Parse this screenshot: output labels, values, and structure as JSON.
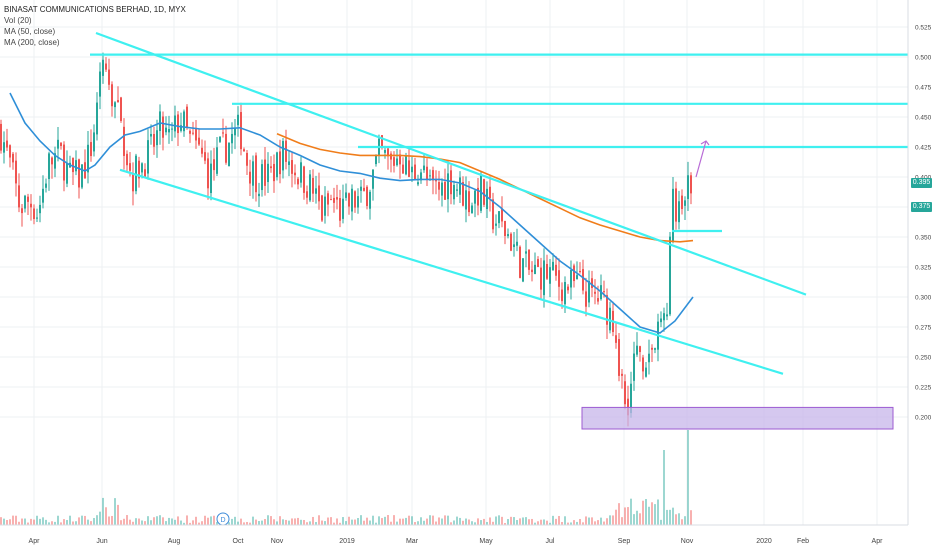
{
  "legend": {
    "title": "BINASAT COMMUNICATIONS BERHAD, 1D, MYX",
    "vol": "Vol (20)",
    "ma50": "MA (50, close)",
    "ma200": "MA (200, close)"
  },
  "badges": {
    "last_price": "0.395",
    "last_price_color": "#26a69a",
    "level_price": "0.375",
    "level_price_color": "#26a69a"
  },
  "event_marker": "D",
  "colors": {
    "up": "#26a69a",
    "down": "#ef5350",
    "ma50": "#2f8fd8",
    "ma200": "#f07d1a",
    "trendline": "#3ff0f0",
    "zone_fill": "#c7b5ea",
    "zone_stroke": "#9d5bd2",
    "projection_arrow": "#b86ad6"
  },
  "chart_data": {
    "type": "candlestick",
    "symbol": "BINASAT COMMUNICATIONS BERHAD",
    "interval": "1D",
    "exchange": "MYX",
    "ylim": [
      0.18,
      0.535
    ],
    "y_ticks": [
      "0.525",
      "0.500",
      "0.475",
      "0.450",
      "0.425",
      "0.400",
      "0.375",
      "0.350",
      "0.325",
      "0.300",
      "0.275",
      "0.250",
      "0.225",
      "0.200"
    ],
    "x_ticks": [
      "Apr",
      "Jun",
      "Aug",
      "Oct",
      "Nov",
      "2019",
      "Mar",
      "May",
      "Jul",
      "Sep",
      "Nov",
      "2020",
      "Feb",
      "Apr"
    ],
    "last_price": 0.395,
    "horizontal_levels": [
      0.502,
      0.461,
      0.425,
      0.395,
      0.375
    ],
    "price_path": [
      [
        0,
        0.44
      ],
      [
        10,
        0.41
      ],
      [
        20,
        0.375
      ],
      [
        30,
        0.38
      ],
      [
        38,
        0.37
      ],
      [
        48,
        0.41
      ],
      [
        60,
        0.42
      ],
      [
        70,
        0.4
      ],
      [
        80,
        0.4
      ],
      [
        90,
        0.42
      ],
      [
        98,
        0.46
      ],
      [
        104,
        0.5
      ],
      [
        110,
        0.47
      ],
      [
        118,
        0.45
      ],
      [
        124,
        0.43
      ],
      [
        132,
        0.4
      ],
      [
        140,
        0.41
      ],
      [
        150,
        0.42
      ],
      [
        160,
        0.44
      ],
      [
        170,
        0.43
      ],
      [
        180,
        0.45
      ],
      [
        190,
        0.43
      ],
      [
        200,
        0.42
      ],
      [
        210,
        0.4
      ],
      [
        220,
        0.42
      ],
      [
        230,
        0.43
      ],
      [
        240,
        0.44
      ],
      [
        248,
        0.41
      ],
      [
        258,
        0.4
      ],
      [
        270,
        0.4
      ],
      [
        282,
        0.42
      ],
      [
        292,
        0.41
      ],
      [
        302,
        0.4
      ],
      [
        312,
        0.39
      ],
      [
        322,
        0.37
      ],
      [
        332,
        0.38
      ],
      [
        342,
        0.37
      ],
      [
        352,
        0.38
      ],
      [
        362,
        0.38
      ],
      [
        372,
        0.4
      ],
      [
        380,
        0.42
      ],
      [
        390,
        0.41
      ],
      [
        400,
        0.42
      ],
      [
        410,
        0.4
      ],
      [
        420,
        0.41
      ],
      [
        430,
        0.39
      ],
      [
        440,
        0.39
      ],
      [
        450,
        0.4
      ],
      [
        460,
        0.39
      ],
      [
        470,
        0.38
      ],
      [
        480,
        0.39
      ],
      [
        490,
        0.37
      ],
      [
        500,
        0.36
      ],
      [
        510,
        0.35
      ],
      [
        520,
        0.33
      ],
      [
        530,
        0.32
      ],
      [
        540,
        0.32
      ],
      [
        550,
        0.32
      ],
      [
        560,
        0.31
      ],
      [
        570,
        0.31
      ],
      [
        580,
        0.31
      ],
      [
        590,
        0.3
      ],
      [
        600,
        0.3
      ],
      [
        608,
        0.29
      ],
      [
        615,
        0.28
      ],
      [
        620,
        0.24
      ],
      [
        625,
        0.21
      ],
      [
        630,
        0.22
      ],
      [
        636,
        0.26
      ],
      [
        642,
        0.25
      ],
      [
        648,
        0.25
      ],
      [
        655,
        0.26
      ],
      [
        662,
        0.28
      ],
      [
        668,
        0.3
      ],
      [
        672,
        0.39
      ],
      [
        676,
        0.36
      ],
      [
        680,
        0.37
      ],
      [
        684,
        0.38
      ],
      [
        688,
        0.39
      ],
      [
        692,
        0.395
      ]
    ],
    "series": [
      {
        "name": "MA (50, close)",
        "points": [
          [
            10,
            0.47
          ],
          [
            25,
            0.445
          ],
          [
            40,
            0.43
          ],
          [
            55,
            0.418
          ],
          [
            70,
            0.41
          ],
          [
            85,
            0.405
          ],
          [
            95,
            0.41
          ],
          [
            110,
            0.425
          ],
          [
            125,
            0.435
          ],
          [
            140,
            0.438
          ],
          [
            160,
            0.445
          ],
          [
            180,
            0.442
          ],
          [
            200,
            0.44
          ],
          [
            220,
            0.44
          ],
          [
            240,
            0.441
          ],
          [
            260,
            0.435
          ],
          [
            280,
            0.425
          ],
          [
            300,
            0.418
          ],
          [
            320,
            0.41
          ],
          [
            340,
            0.405
          ],
          [
            360,
            0.403
          ],
          [
            380,
            0.399
          ],
          [
            400,
            0.397
          ],
          [
            420,
            0.398
          ],
          [
            440,
            0.398
          ],
          [
            460,
            0.395
          ],
          [
            480,
            0.388
          ],
          [
            500,
            0.375
          ],
          [
            520,
            0.36
          ],
          [
            540,
            0.345
          ],
          [
            560,
            0.33
          ],
          [
            580,
            0.318
          ],
          [
            600,
            0.305
          ],
          [
            620,
            0.29
          ],
          [
            640,
            0.275
          ],
          [
            660,
            0.27
          ],
          [
            675,
            0.28
          ],
          [
            693,
            0.3
          ]
        ]
      },
      {
        "name": "MA (200, close)",
        "points": [
          [
            277,
            0.436
          ],
          [
            300,
            0.428
          ],
          [
            320,
            0.423
          ],
          [
            340,
            0.42
          ],
          [
            360,
            0.418
          ],
          [
            380,
            0.418
          ],
          [
            400,
            0.418
          ],
          [
            420,
            0.417
          ],
          [
            440,
            0.415
          ],
          [
            460,
            0.412
          ],
          [
            480,
            0.405
          ],
          [
            500,
            0.398
          ],
          [
            520,
            0.39
          ],
          [
            540,
            0.382
          ],
          [
            560,
            0.374
          ],
          [
            580,
            0.366
          ],
          [
            600,
            0.36
          ],
          [
            620,
            0.355
          ],
          [
            640,
            0.35
          ],
          [
            660,
            0.347
          ],
          [
            680,
            0.346
          ],
          [
            693,
            0.347
          ]
        ]
      }
    ],
    "trendlines": [
      [
        [
          96,
          0.52
        ],
        [
          806,
          0.302
        ]
      ],
      [
        [
          120,
          0.406
        ],
        [
          783,
          0.236
        ]
      ],
      [
        [
          358,
          0.425
        ],
        [
          908,
          0.425
        ]
      ],
      [
        [
          90,
          0.502
        ],
        [
          908,
          0.502
        ]
      ],
      [
        [
          232,
          0.461
        ],
        [
          908,
          0.461
        ]
      ],
      [
        [
          672,
          0.355
        ],
        [
          722,
          0.355
        ]
      ]
    ],
    "zone": {
      "x_from": 582,
      "x_to": 893,
      "y_from": 0.19,
      "y_to": 0.208
    },
    "projection": {
      "from": [
        696,
        0.4
      ],
      "to": [
        706,
        0.43
      ]
    }
  }
}
